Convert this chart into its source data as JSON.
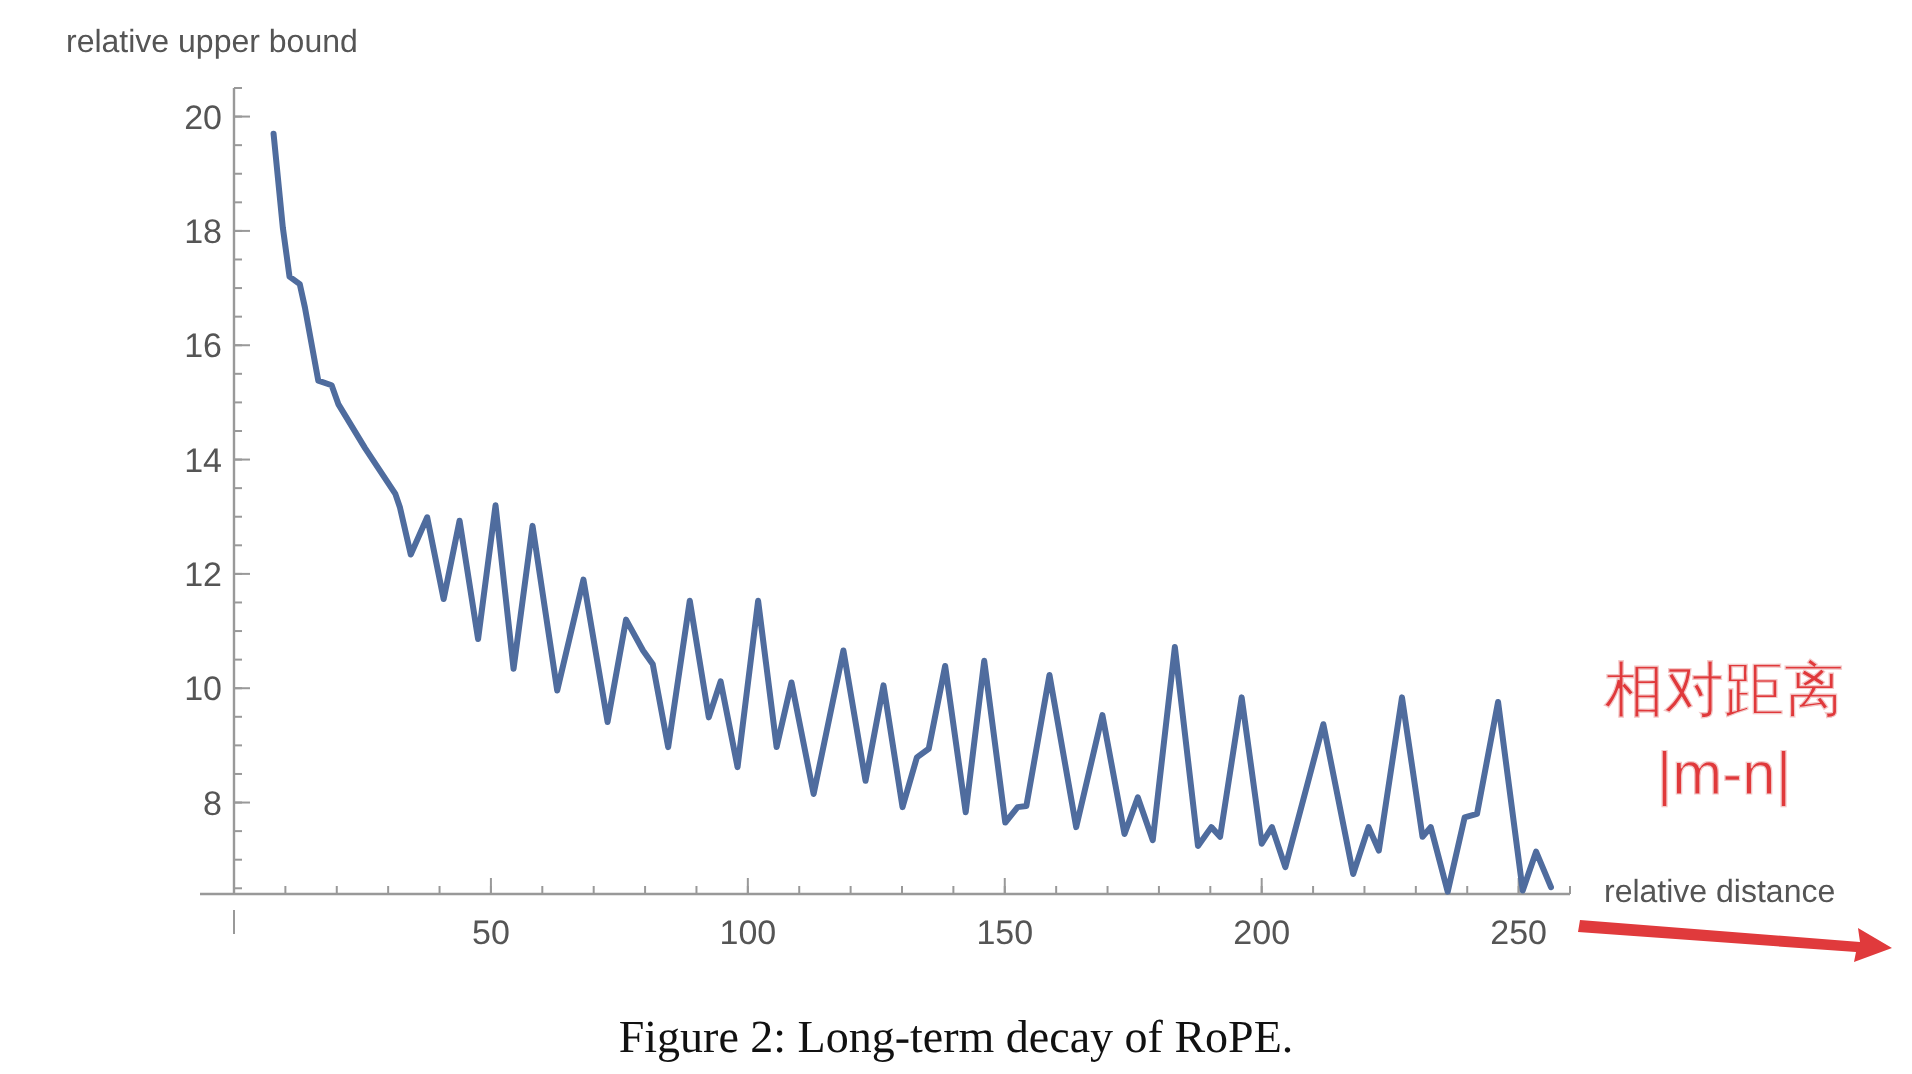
{
  "chart_data": {
    "type": "line",
    "xlabel": "relative distance",
    "ylabel": "relative upper bound",
    "x": [
      7.7,
      9.5,
      10.8,
      12.8,
      13.8,
      16.4,
      19,
      20.3,
      25.5,
      31.4,
      32.3,
      34.4,
      37.6,
      40.8,
      43.9,
      47.5,
      50.9,
      54.4,
      58.1,
      62.9,
      68,
      72.7,
      76.3,
      79.6,
      81.5,
      84.5,
      88.7,
      92.4,
      94.7,
      98,
      102,
      105.6,
      108.5,
      112.8,
      118.6,
      122.9,
      126.4,
      130.1,
      132.9,
      135.2,
      138.4,
      142.4,
      146,
      150.1,
      152.5,
      154.2,
      158.7,
      163.9,
      169,
      173.3,
      175.9,
      178.8,
      183.1,
      187.6,
      190.2,
      191.9,
      196.1,
      200,
      202,
      204.6,
      212,
      217.8,
      220.8,
      222.8,
      227.3,
      231.3,
      232.9,
      236.2,
      239.5,
      241.9,
      246,
      250.8,
      253.4,
      256.3
    ],
    "series": [
      {
        "color": "#4f6c9e",
        "values": [
          19.7,
          18.06,
          17.2,
          17.07,
          16.66,
          15.38,
          15.3,
          14.97,
          14.2,
          13.4,
          13.16,
          12.34,
          12.99,
          11.56,
          12.93,
          10.86,
          13.2,
          10.34,
          12.84,
          9.96,
          11.9,
          9.41,
          11.2,
          10.66,
          10.42,
          8.97,
          11.53,
          9.49,
          10.12,
          8.62,
          11.53,
          8.97,
          10.1,
          8.15,
          10.66,
          8.38,
          10.05,
          7.92,
          8.79,
          8.94,
          10.39,
          7.83,
          10.48,
          7.65,
          7.92,
          7.94,
          10.23,
          7.57,
          9.53,
          7.45,
          8.09,
          7.34,
          10.72,
          7.24,
          7.57,
          7.4,
          9.84,
          7.28,
          7.57,
          6.87,
          9.37,
          6.75,
          7.57,
          7.16,
          9.84,
          7.4,
          7.57,
          6.44,
          7.74,
          7.8,
          9.76,
          6.46,
          7.14,
          6.52
        ]
      }
    ],
    "xlim": [
      0,
      260
    ],
    "ylim": [
      6.4,
      20.5
    ],
    "xticks": [
      {
        "value": 0,
        "label": null
      },
      50,
      100,
      150,
      200,
      250
    ],
    "yticks": [
      8,
      10,
      12,
      14,
      16,
      18,
      20
    ],
    "annotations": [
      "相对距离\n|m-n|",
      "Figure 2: Long-term decay of RoPE."
    ]
  }
}
